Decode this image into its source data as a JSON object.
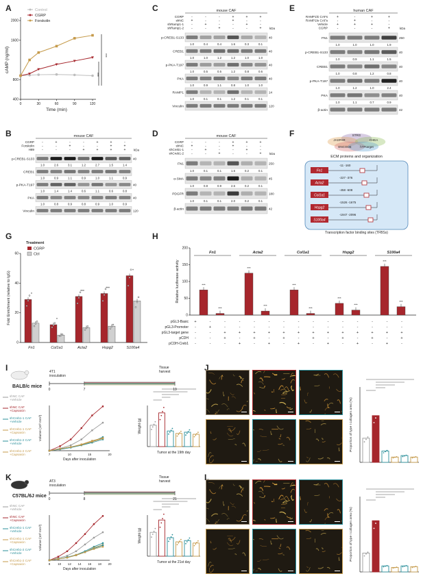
{
  "panels": [
    "A",
    "B",
    "C",
    "D",
    "E",
    "F",
    "G",
    "H",
    "I",
    "J",
    "K",
    "L"
  ],
  "A": {
    "ylabel": "cAMP (ng/ml)",
    "xlabel": "Time (min)",
    "yticks": [
      "400",
      "800",
      "1600",
      "2000"
    ],
    "xticks": [
      "0",
      "30",
      "60",
      "90",
      "120"
    ],
    "legend": [
      "Control",
      "CGRP",
      "Forskolin"
    ],
    "sig": [
      "***",
      "***"
    ],
    "colors": {
      "control": "#9e9e9e",
      "cgrp": "#a6262c",
      "forskolin": "#c98a2a"
    }
  },
  "chart_data": [
    {
      "type": "line",
      "x": [
        0,
        15,
        30,
        60,
        90,
        120
      ],
      "series": [
        {
          "name": "Control",
          "values": [
            880,
            890,
            900,
            905,
            895,
            880
          ]
        },
        {
          "name": "CGRP",
          "values": [
            880,
            920,
            1010,
            1110,
            1180,
            1250
          ]
        },
        {
          "name": "Forskolin",
          "values": [
            880,
            1200,
            1350,
            1480,
            1640,
            1700
          ]
        }
      ],
      "xlabel": "Time (min)",
      "ylabel": "cAMP (ng/ml)",
      "ylim": [
        400,
        2000
      ]
    },
    {
      "type": "bar",
      "categories": [
        "Fn1",
        "Col1a1",
        "Acta2",
        "Hspg2",
        "S100a4"
      ],
      "series": [
        {
          "name": "CGRP",
          "values": [
            29,
            12,
            31,
            33,
            45
          ]
        },
        {
          "name": "Ctrl",
          "values": [
            13,
            5,
            10,
            11,
            28
          ]
        }
      ],
      "ylabel": "Fold Enrichment (relative to IgG)",
      "ylim": [
        0,
        60
      ]
    },
    {
      "type": "bar",
      "categories": [
        "Fn1",
        "Fn1b",
        "Acta2",
        "Acta2b",
        "Col1a1",
        "Col1a1b",
        "Hspg2",
        "Hspg2b",
        "S100a4",
        "S100a4b"
      ],
      "values": [
        75,
        5,
        125,
        12,
        75,
        5,
        35,
        15,
        145,
        25
      ],
      "ylabel": "Relative luciferase activity",
      "ylim": [
        0,
        200
      ]
    }
  ],
  "B": {
    "title": "mouse CAF",
    "rows": [
      "CGRP",
      "Forskolin",
      "H89"
    ],
    "bands": [
      {
        "label": "p-CREB1-S133",
        "mw": "40",
        "q": [
          "1.0",
          "2.6",
          "3.1",
          "1.2",
          "2.7",
          "1.5",
          "1.4"
        ]
      },
      {
        "label": "CREB1",
        "mw": "",
        "q": [
          "1.0",
          "0.9",
          "1.1",
          "0.9",
          "1.0",
          "1.1",
          "0.9"
        ]
      },
      {
        "label": "p-PKA-T197",
        "mw": "40",
        "q": [
          "1.0",
          "1.4",
          "1.4",
          "0.6",
          "1.1",
          "0.6",
          "0.8"
        ]
      },
      {
        "label": "PKA",
        "mw": "40",
        "q": [
          "1.0",
          "0.8",
          "0.9",
          "0.8",
          "0.9",
          "1.0",
          "0.9"
        ]
      },
      {
        "label": "Vinculin",
        "mw": "120",
        "q": []
      }
    ]
  },
  "C": {
    "title": "mouse CAF",
    "rows": [
      "CGRP",
      "shNC",
      "shRamp1-1",
      "shRamp1-2"
    ],
    "bands": [
      {
        "label": "p-CREB1-S133",
        "mw": "40",
        "q": [
          "1.0",
          "0.4",
          "0.4",
          "1.6",
          "0.3",
          "0.1"
        ]
      },
      {
        "label": "CREB1",
        "mw": "40",
        "q": [
          "1.0",
          "1.0",
          "1.2",
          "1.2",
          "1.0",
          "1.0"
        ]
      },
      {
        "label": "p-PKA-T197",
        "mw": "40",
        "q": [
          "1.0",
          "0.5",
          "0.5",
          "1.2",
          "0.8",
          "0.6"
        ]
      },
      {
        "label": "PKA",
        "mw": "40",
        "q": [
          "1.0",
          "0.9",
          "1.1",
          "0.8",
          "1.0",
          "1.0"
        ]
      },
      {
        "label": "RAMP1",
        "mw": "14",
        "q": [
          "1.0",
          "0.1",
          "0.1",
          "1.2",
          "0.1",
          "0.1"
        ]
      },
      {
        "label": "Vinculin",
        "mw": "120",
        "q": []
      }
    ]
  },
  "D": {
    "title": "mouse CAF",
    "rows": [
      "CGRP",
      "shNC",
      "shCreb1-1",
      "shCreb1-2"
    ],
    "bands": [
      {
        "label": "FN1",
        "mw": "250",
        "q": [
          "1.0",
          "0.1",
          "0.1",
          "1.6",
          "0.2",
          "0.1"
        ]
      },
      {
        "label": "α-SMA",
        "mw": "45",
        "q": [
          "1.0",
          "0.8",
          "0.9",
          "2.6",
          "0.2",
          "0.1"
        ]
      },
      {
        "label": "PDGFR",
        "mw": "180",
        "q": [
          "1.0",
          "0.1",
          "0.1",
          "2.0",
          "0.2",
          "0.1"
        ]
      },
      {
        "label": "β-actin",
        "mw": "42",
        "q": []
      }
    ]
  },
  "E": {
    "title": "human CAF",
    "rows": [
      "RAMP1hi CAFs",
      "RAMP1lo CAFs",
      "Vehicle",
      "CGRP"
    ],
    "bands": [
      {
        "label": "FN1",
        "mw": "250",
        "q": [
          "1.0",
          "1.0",
          "1.0",
          "1.9"
        ]
      },
      {
        "label": "p-CREB1-S133",
        "mw": "40",
        "q": [
          "1.0",
          "0.9",
          "1.1",
          "1.5"
        ]
      },
      {
        "label": "CREB1",
        "mw": "40",
        "q": [
          "1.0",
          "0.8",
          "1.2",
          "0.8"
        ]
      },
      {
        "label": "p-PKA-T197",
        "mw": "40",
        "q": [
          "1.0",
          "1.2",
          "1.0",
          "2.4"
        ]
      },
      {
        "label": "PKA",
        "mw": "40",
        "q": [
          "1.0",
          "1.1",
          "0.7",
          "0.9"
        ]
      },
      {
        "label": "β-actin",
        "mw": "42",
        "q": []
      }
    ]
  },
  "F": {
    "venn": [
      "STRG",
      "JASPAR",
      "CHEA",
      "ENCODE",
      "hTFtarget"
    ],
    "title": "ECM proteins and organization",
    "genes": [
      {
        "name": "Fn1",
        "range": "-11  -160"
      },
      {
        "name": "Acta2",
        "range": "-227  -376"
      },
      {
        "name": "Col1a1",
        "range": "-458  -608"
      },
      {
        "name": "Hspg2",
        "range": "-1526  -1675"
      },
      {
        "name": "S100a4",
        "range": "-1947  -2096"
      }
    ],
    "caption": "Transcription factor binding sites (TFBSs)"
  },
  "G": {
    "legend_title": "Treatment",
    "legend": [
      "CGRP",
      "Ctrl"
    ],
    "ylabel": "Fold Enrichment (relative to IgG)",
    "yticks": [
      "0",
      "20",
      "40",
      "60"
    ],
    "sig": [
      "*",
      "*",
      "***",
      "***",
      "*"
    ]
  },
  "H": {
    "ylabel": "Relative luciferase activity",
    "yticks": [
      "0",
      "50",
      "100",
      "150",
      "200"
    ],
    "genes": [
      "Fn1",
      "Acta2",
      "Col1a1",
      "Hspg2",
      "S100a4"
    ],
    "rows": [
      "pGL3-Basic",
      "pGL3-Promoter",
      "pGL3-target gene",
      "pCDH",
      "pCDH-Creb1"
    ],
    "sig": [
      "***",
      "***",
      "***",
      "***",
      "***",
      "***",
      "***",
      "***",
      "***",
      "***"
    ]
  },
  "I": {
    "mouse": "BALB/c mice",
    "timeline": {
      "start": "4T1 inoculation",
      "end": "Tissue harvest",
      "ticks": [
        "0",
        "7",
        "19"
      ]
    },
    "legend": [
      "shNC CAF +Vehicle",
      "shNC CAF +Capsaicin",
      "shCreb1-1 CAF +Vehicle",
      "shCreb1-1 CAF +Capsaicin",
      "shCreb1-2 CAF +Vehicle",
      "shCreb1-2 CAF +Capsaicin"
    ],
    "ylabel": "Volume (10³ mm³)",
    "xlabel": "Days after inoculation",
    "xticks": [
      "7",
      "10",
      "15",
      "20"
    ],
    "ylabel2": "Weight (g)",
    "caption2": "Tumor at the 19th day"
  },
  "K": {
    "mouse": "C57BL/6J mice",
    "timeline": {
      "start": "AT3 inoculation",
      "end": "Tissue harvest",
      "ticks": [
        "0",
        "8",
        "21"
      ]
    },
    "legend": [
      "shNC CAF +Vehicle",
      "shNC CAF +Capsaicin",
      "shCreb1-1 CAF +Vehicle",
      "shCreb1-1 CAF +Capsaicin",
      "shCreb1-2 CAF +Vehicle",
      "shCreb1-2 CAF +Capsaicin"
    ],
    "ylabel": "Volume (10³ mm³)",
    "xlabel": "Days after inoculation",
    "xticks": [
      "8",
      "10",
      "12",
      "14",
      "16",
      "18",
      "20"
    ],
    "ylabel2": "Weight (g)",
    "caption2": "Tumor at the 21st day"
  },
  "J": {
    "ylabel": "Proportion of type I collagen area (%)"
  },
  "L": {
    "ylabel": "Proportion of type I collagen area (%)"
  },
  "colors": {
    "red": "#a6262c",
    "gray": "#bdbdbd",
    "teal": "#2a8f9a",
    "gold": "#c59a4a",
    "blue": "#3a78b5"
  }
}
